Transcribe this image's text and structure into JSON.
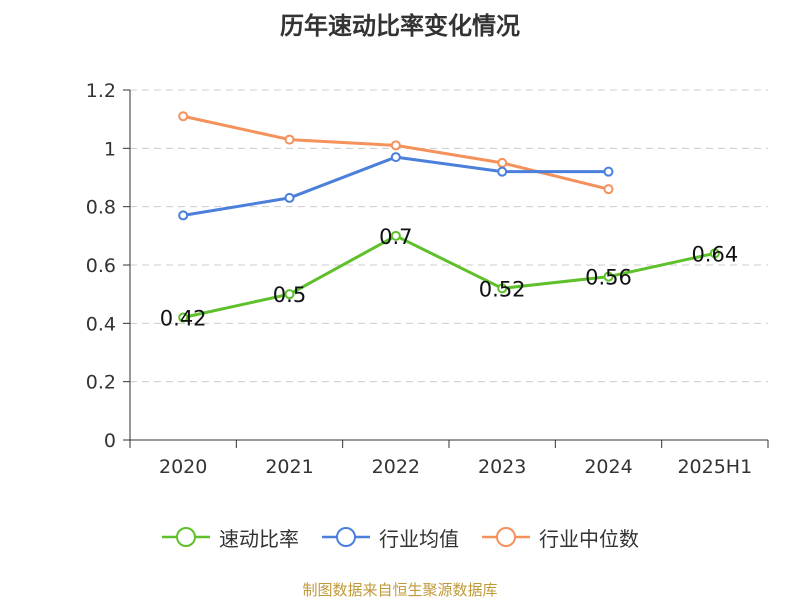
{
  "chart_data": {
    "type": "line",
    "title": "历年速动比率变化情况",
    "categories": [
      "2020",
      "2021",
      "2022",
      "2023",
      "2024",
      "2025H1"
    ],
    "ylim": [
      0,
      1.2
    ],
    "yticks": [
      "0",
      "0.2",
      "0.4",
      "0.6",
      "0.8",
      "1",
      "1.2"
    ],
    "grid": true,
    "legend_position": "bottom",
    "series": [
      {
        "name": "速动比率",
        "color": "#5ec02a",
        "values": [
          0.42,
          0.5,
          0.7,
          0.52,
          0.56,
          0.64
        ],
        "labels": [
          "0.42",
          "0.5",
          "0.7",
          "0.52",
          "0.56",
          "0.64"
        ]
      },
      {
        "name": "行业均值",
        "color": "#4a7fdc",
        "values": [
          0.77,
          0.83,
          0.97,
          0.92,
          0.92,
          null
        ]
      },
      {
        "name": "行业中位数",
        "color": "#f5915a",
        "values": [
          1.11,
          1.03,
          1.01,
          0.95,
          0.86,
          null
        ]
      }
    ]
  },
  "source": "制图数据来自恒生聚源数据库"
}
